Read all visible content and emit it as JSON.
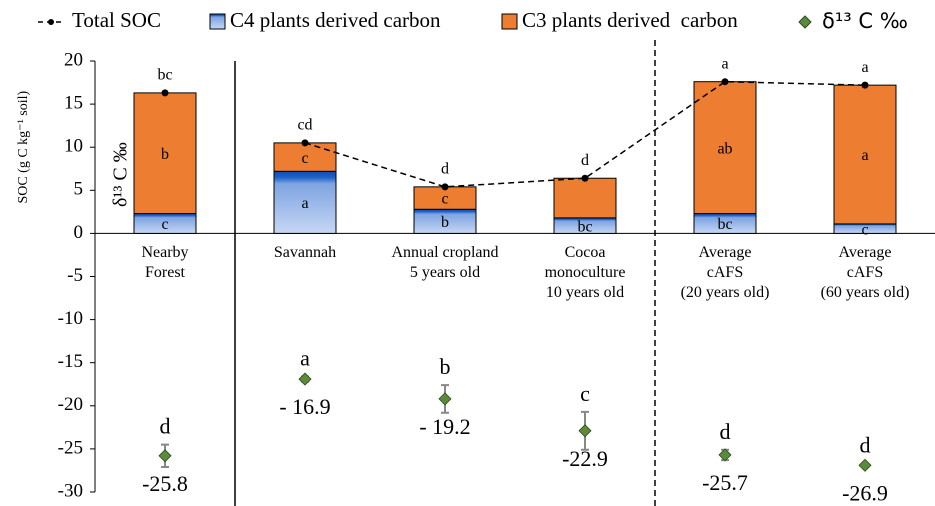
{
  "chart_data": {
    "type": "stacked_bar_with_points",
    "categories": [
      [
        "Nearby",
        "Forest"
      ],
      [
        "Savannah"
      ],
      [
        "Annual cropland",
        "5 years old"
      ],
      [
        "Cocoa",
        "monoculture",
        "10 years old"
      ],
      [
        "Average",
        "cAFS",
        "(20 years old)"
      ],
      [
        "Average",
        "cAFS",
        "(60 years old)"
      ]
    ],
    "ylabel": "SOC (g C kg⁻¹ soil)",
    "y2label": "δ¹³ C ‰",
    "ylim": [
      -30,
      20
    ],
    "yticks": [
      -30,
      -25,
      -20,
      -15,
      -10,
      -5,
      0,
      5,
      10,
      15,
      20
    ],
    "separators": [
      {
        "after": 0,
        "style": "solid"
      },
      {
        "after": 3,
        "style": "dashed"
      }
    ],
    "series": [
      {
        "name": "C4 plants derived carbon",
        "color": "#8fb1e6",
        "values": [
          2.3,
          7.2,
          2.8,
          1.8,
          2.3,
          1.1
        ],
        "letters": [
          "c",
          "a",
          "b",
          "bc",
          "bc",
          "c"
        ]
      },
      {
        "name": "C3 plants derived  carbon",
        "color": "#ed7d31",
        "values": [
          14.0,
          3.3,
          2.6,
          4.6,
          15.3,
          16.1
        ],
        "letters": [
          "b",
          "c",
          "c",
          null,
          "ab",
          "a"
        ]
      }
    ],
    "total": {
      "name": "Total SOC",
      "values": [
        16.3,
        10.5,
        5.4,
        6.4,
        17.6,
        17.2
      ],
      "letters": [
        "bc",
        "cd",
        "d",
        "d",
        "a",
        "a"
      ]
    },
    "delta": {
      "name": "δ¹³ C ‰",
      "color": "#5b8a3a",
      "values": [
        -25.8,
        -16.9,
        -19.2,
        -22.9,
        -25.7,
        -26.9
      ],
      "errors": [
        1.3,
        0.3,
        1.6,
        2.2,
        0.6,
        0.2
      ],
      "value_labels": [
        "-25.8",
        "- 16.9",
        "- 19.2",
        "-22.9",
        "-25.7",
        "-26.9"
      ],
      "letters": [
        "d",
        "a",
        "b",
        "c",
        "d",
        "d"
      ]
    }
  }
}
